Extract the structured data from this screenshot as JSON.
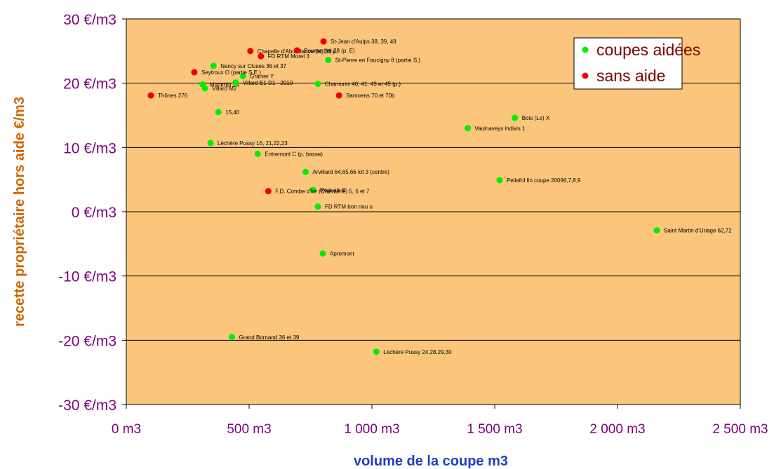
{
  "chart_data": {
    "type": "scatter",
    "title": "",
    "xlabel": "volume de la coupe m3",
    "ylabel": "recette propriétaire hors aide €/m3",
    "xlim": [
      0,
      2500
    ],
    "ylim": [
      -30,
      30
    ],
    "x_ticks": [
      0,
      500,
      1000,
      1500,
      2000,
      2500
    ],
    "x_tick_labels": [
      "0 m3",
      "500 m3",
      "1 000 m3",
      "1 500 m3",
      "2 000 m3",
      "2 500 m3"
    ],
    "y_ticks": [
      30,
      20,
      10,
      0,
      -10,
      -20,
      -30
    ],
    "y_tick_labels": [
      "30 €/m3",
      "20 €/m3",
      "10 €/m3",
      "0 €/m3",
      "-10 €/m3",
      "-20 €/m3",
      "-30 €/m3"
    ],
    "grid": "horizontal",
    "legend_position": "top-right",
    "colors": {
      "plot_bg": "#fbc67c",
      "green": "#00ee00",
      "red": "#ee0000"
    },
    "series": [
      {
        "name": "coupes aidées",
        "color": "#00ee00",
        "points": [
          {
            "x": 311,
            "y": 19.8,
            "label": "Montmin 24"
          },
          {
            "x": 320,
            "y": 19.2,
            "label": "Villard M2"
          },
          {
            "x": 355,
            "y": 22.7,
            "label": "Nancy sur Cluses 36 et 37"
          },
          {
            "x": 445,
            "y": 20.1,
            "label": "Villard E1 D1 - 2010"
          },
          {
            "x": 475,
            "y": 21.1,
            "label": "Granier Y"
          },
          {
            "x": 375,
            "y": 15.5,
            "label": "15,40"
          },
          {
            "x": 343,
            "y": 10.7,
            "label": "Léchère Pussy 16, 21,22,23"
          },
          {
            "x": 535,
            "y": 9.0,
            "label": "Entremont C (p. basse)"
          },
          {
            "x": 730,
            "y": 6.2,
            "label": "Arvillard  64,65,66 lot 3 (centre)"
          },
          {
            "x": 760,
            "y": 3.4,
            "label": "Rognaix E"
          },
          {
            "x": 780,
            "y": 0.8,
            "label": "FD RTM bon rieu u"
          },
          {
            "x": 780,
            "y": 19.9,
            "label": "Chamonix 40, 41, 43 et 45 (p.)"
          },
          {
            "x": 822,
            "y": 23.6,
            "label": "St-Pierre en Faucigny 8 (partie S.)"
          },
          {
            "x": 800,
            "y": -6.5,
            "label": "Apremont"
          },
          {
            "x": 1390,
            "y": 13.0,
            "label": "Vaulnaveys indivis 1"
          },
          {
            "x": 1582,
            "y": 14.6,
            "label": "Bois (Le) X"
          },
          {
            "x": 1520,
            "y": 4.9,
            "label": "Pellafol fin coupe 20096,7,8,9"
          },
          {
            "x": 2160,
            "y": -2.9,
            "label": "Saint Martin d'Uriage 62,72"
          },
          {
            "x": 430,
            "y": -19.5,
            "label": "Grand Bornand 36 et 39"
          },
          {
            "x": 1018,
            "y": -21.8,
            "label": "Léchère Pussy 24,28,29,30"
          }
        ]
      },
      {
        "name": "sans aide",
        "color": "#ee0000",
        "points": [
          {
            "x": 100,
            "y": 18.1,
            "label": "Thônes 276"
          },
          {
            "x": 277,
            "y": 21.7,
            "label": "Seytroux  O (partie S.E.)"
          },
          {
            "x": 505,
            "y": 25.0,
            "label": "Chapelle d'Abondance (la) 39 p."
          },
          {
            "x": 548,
            "y": 24.2,
            "label": "FD RTM Morel 3"
          },
          {
            "x": 695,
            "y": 25.1,
            "label": "Bourne (le) 28 (p. E)"
          },
          {
            "x": 803,
            "y": 26.5,
            "label": "St-Jean d'Aulps 38, 39, 49"
          },
          {
            "x": 866,
            "y": 18.1,
            "label": "Samoens 70 et 70b"
          },
          {
            "x": 578,
            "y": 3.2,
            "label": "F.D. Combe d'Ire (Chevaline) 5, 6 et 7"
          }
        ]
      }
    ]
  }
}
